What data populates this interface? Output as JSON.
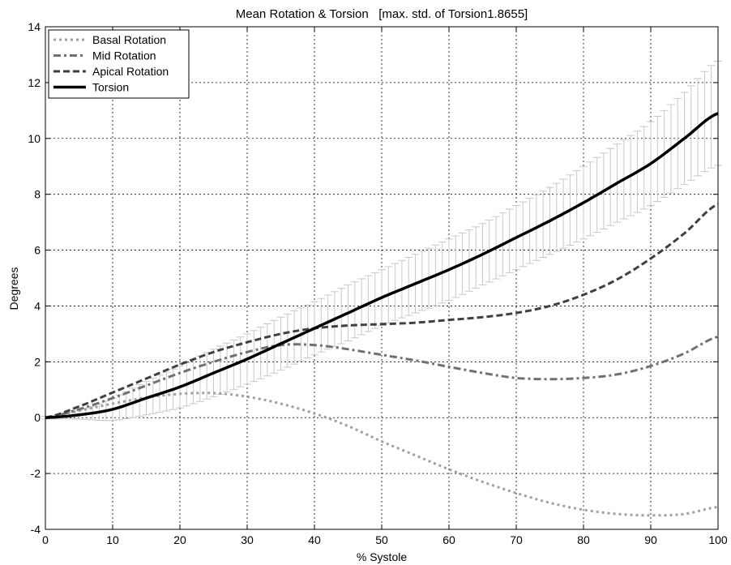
{
  "chart_data": {
    "type": "line",
    "title": "Mean Rotation & Torsion   [max. std. of Torsion1.8655]",
    "xlabel": "% Systole",
    "ylabel": "Degrees",
    "xlim": [
      0,
      100
    ],
    "ylim": [
      -4,
      14
    ],
    "xticks": [
      0,
      10,
      20,
      30,
      40,
      50,
      60,
      70,
      80,
      90,
      100
    ],
    "yticks": [
      -4,
      -2,
      0,
      2,
      4,
      6,
      8,
      10,
      12,
      14
    ],
    "grid": true,
    "legend_position": "top-left",
    "series": [
      {
        "name": "Basal Rotation",
        "style": "dotted",
        "color": "#a0a0a0",
        "x": [
          0,
          5,
          10,
          15,
          20,
          25,
          30,
          35,
          40,
          45,
          50,
          55,
          60,
          65,
          70,
          75,
          80,
          85,
          90,
          95,
          100
        ],
        "y": [
          0,
          0.25,
          0.5,
          0.72,
          0.85,
          0.88,
          0.75,
          0.5,
          0.15,
          -0.3,
          -0.85,
          -1.35,
          -1.85,
          -2.3,
          -2.7,
          -3.05,
          -3.3,
          -3.45,
          -3.5,
          -3.45,
          -3.2
        ]
      },
      {
        "name": "Mid Rotation",
        "style": "dashdot",
        "color": "#707070",
        "x": [
          0,
          5,
          10,
          15,
          20,
          25,
          30,
          35,
          40,
          45,
          50,
          55,
          60,
          65,
          70,
          75,
          80,
          85,
          90,
          95,
          100
        ],
        "y": [
          0,
          0.3,
          0.7,
          1.15,
          1.6,
          2.0,
          2.35,
          2.6,
          2.6,
          2.45,
          2.25,
          2.05,
          1.82,
          1.6,
          1.42,
          1.38,
          1.42,
          1.55,
          1.85,
          2.3,
          2.9
        ]
      },
      {
        "name": "Apical Rotation",
        "style": "dashed",
        "color": "#404040",
        "x": [
          0,
          5,
          10,
          15,
          20,
          25,
          30,
          35,
          40,
          45,
          50,
          55,
          60,
          65,
          70,
          75,
          80,
          85,
          90,
          95,
          100
        ],
        "y": [
          0,
          0.4,
          0.9,
          1.4,
          1.9,
          2.35,
          2.7,
          3.0,
          3.2,
          3.3,
          3.35,
          3.4,
          3.5,
          3.6,
          3.75,
          4.0,
          4.4,
          4.95,
          5.7,
          6.6,
          7.65
        ]
      },
      {
        "name": "Torsion",
        "style": "solid",
        "color": "#000000",
        "x": [
          0,
          5,
          10,
          15,
          20,
          25,
          30,
          35,
          40,
          45,
          50,
          55,
          60,
          65,
          70,
          75,
          80,
          85,
          90,
          95,
          100
        ],
        "y": [
          0,
          0.1,
          0.3,
          0.7,
          1.1,
          1.6,
          2.1,
          2.65,
          3.2,
          3.75,
          4.3,
          4.8,
          5.3,
          5.85,
          6.45,
          7.05,
          7.7,
          8.4,
          9.1,
          10.0,
          10.9
        ],
        "error_bars": {
          "color": "#c8c8c8",
          "x": [
            0,
            5,
            10,
            15,
            20,
            25,
            30,
            35,
            40,
            45,
            50,
            55,
            60,
            65,
            70,
            75,
            80,
            85,
            90,
            95,
            100
          ],
          "std": [
            0.05,
            0.15,
            0.4,
            0.6,
            0.75,
            0.85,
            0.9,
            0.95,
            0.95,
            1.0,
            1.0,
            1.05,
            1.1,
            1.1,
            1.15,
            1.2,
            1.3,
            1.4,
            1.5,
            1.65,
            1.8655
          ]
        }
      }
    ]
  }
}
